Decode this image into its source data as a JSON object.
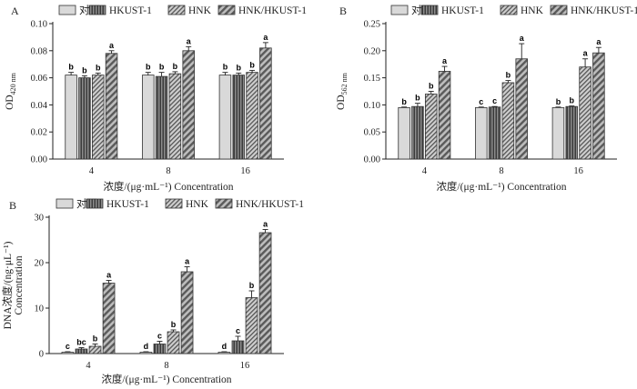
{
  "chart_data": [
    {
      "type": "bar",
      "panel": "A",
      "legend": [
        "对照",
        "HKUST-1",
        "HNK",
        "HNK/HKUST-1"
      ],
      "xlabel": "浓度/(μg·mL⁻¹) Concentration",
      "ylabel": "OD",
      "ylabel_sub": "420 nm",
      "categories": [
        "4",
        "8",
        "16"
      ],
      "ylim": [
        0,
        0.1
      ],
      "yticks": [
        "0.00",
        "0.02",
        "0.04",
        "0.06",
        "0.08",
        "0.10"
      ],
      "series": [
        {
          "name": "对照",
          "values": [
            0.062,
            0.062,
            0.062
          ],
          "errors": [
            0.002,
            0.002,
            0.002
          ],
          "letters": [
            "b",
            "b",
            "b"
          ]
        },
        {
          "name": "HKUST-1",
          "values": [
            0.06,
            0.061,
            0.062
          ],
          "errors": [
            0.0015,
            0.003,
            0.0015
          ],
          "letters": [
            "b",
            "b",
            "b"
          ]
        },
        {
          "name": "HNK",
          "values": [
            0.062,
            0.063,
            0.064
          ],
          "errors": [
            0.0015,
            0.0015,
            0.0015
          ],
          "letters": [
            "b",
            "b",
            "b"
          ]
        },
        {
          "name": "HNK/HKUST-1",
          "values": [
            0.078,
            0.08,
            0.082
          ],
          "errors": [
            0.002,
            0.003,
            0.004
          ],
          "letters": [
            "a",
            "a",
            "a"
          ]
        }
      ]
    },
    {
      "type": "bar",
      "panel": "B",
      "legend": [
        "对照",
        "HKUST-1",
        "HNK",
        "HNK/HKUST-1"
      ],
      "xlabel": "浓度/(μg·mL⁻¹) Concentration",
      "ylabel": "OD",
      "ylabel_sub": "562 nm",
      "categories": [
        "4",
        "8",
        "16"
      ],
      "ylim": [
        0,
        0.25
      ],
      "yticks": [
        "0.00",
        "0.05",
        "0.10",
        "0.15",
        "0.20",
        "0.25"
      ],
      "series": [
        {
          "name": "对照",
          "values": [
            0.095,
            0.095,
            0.095
          ],
          "errors": [
            0.001,
            0.001,
            0.001
          ],
          "letters": [
            "b",
            "c",
            "b"
          ]
        },
        {
          "name": "HKUST-1",
          "values": [
            0.097,
            0.096,
            0.097
          ],
          "errors": [
            0.006,
            0.001,
            0.001
          ],
          "letters": [
            "b",
            "c",
            "b"
          ]
        },
        {
          "name": "HNK",
          "values": [
            0.12,
            0.141,
            0.17
          ],
          "errors": [
            0.005,
            0.004,
            0.015
          ],
          "letters": [
            "b",
            "b",
            "a"
          ]
        },
        {
          "name": "HNK/HKUST-1",
          "values": [
            0.162,
            0.185,
            0.196
          ],
          "errors": [
            0.009,
            0.028,
            0.01
          ],
          "letters": [
            "a",
            "a",
            "a"
          ]
        }
      ]
    },
    {
      "type": "bar",
      "panel": "B",
      "legend": [
        "对照",
        "HKUST-1",
        "HNK",
        "HNK/HKUST-1"
      ],
      "xlabel": "浓度/(μg·mL⁻¹) Concentration",
      "ylabel": "DNA浓度/(ng·μL⁻¹)",
      "ylabel2": "Concentration",
      "categories": [
        "4",
        "8",
        "16"
      ],
      "ylim": [
        0,
        30
      ],
      "yticks": [
        "0",
        "10",
        "20",
        "30"
      ],
      "series": [
        {
          "name": "对照",
          "values": [
            0.3,
            0.3,
            0.3
          ],
          "errors": [
            0.1,
            0.1,
            0.1
          ],
          "letters": [
            "c",
            "d",
            "d"
          ]
        },
        {
          "name": "HKUST-1",
          "values": [
            1.0,
            2.1,
            2.8
          ],
          "errors": [
            0.3,
            0.6,
            1.0
          ],
          "letters": [
            "bc",
            "c",
            "c"
          ]
        },
        {
          "name": "HNK",
          "values": [
            1.6,
            4.8,
            12.3
          ],
          "errors": [
            0.5,
            0.4,
            1.5
          ],
          "letters": [
            "b",
            "b",
            "b"
          ]
        },
        {
          "name": "HNK/HKUST-1",
          "values": [
            15.5,
            18.0,
            26.6
          ],
          "errors": [
            0.6,
            1.1,
            0.7
          ],
          "letters": [
            "a",
            "a",
            "a"
          ]
        }
      ]
    }
  ]
}
